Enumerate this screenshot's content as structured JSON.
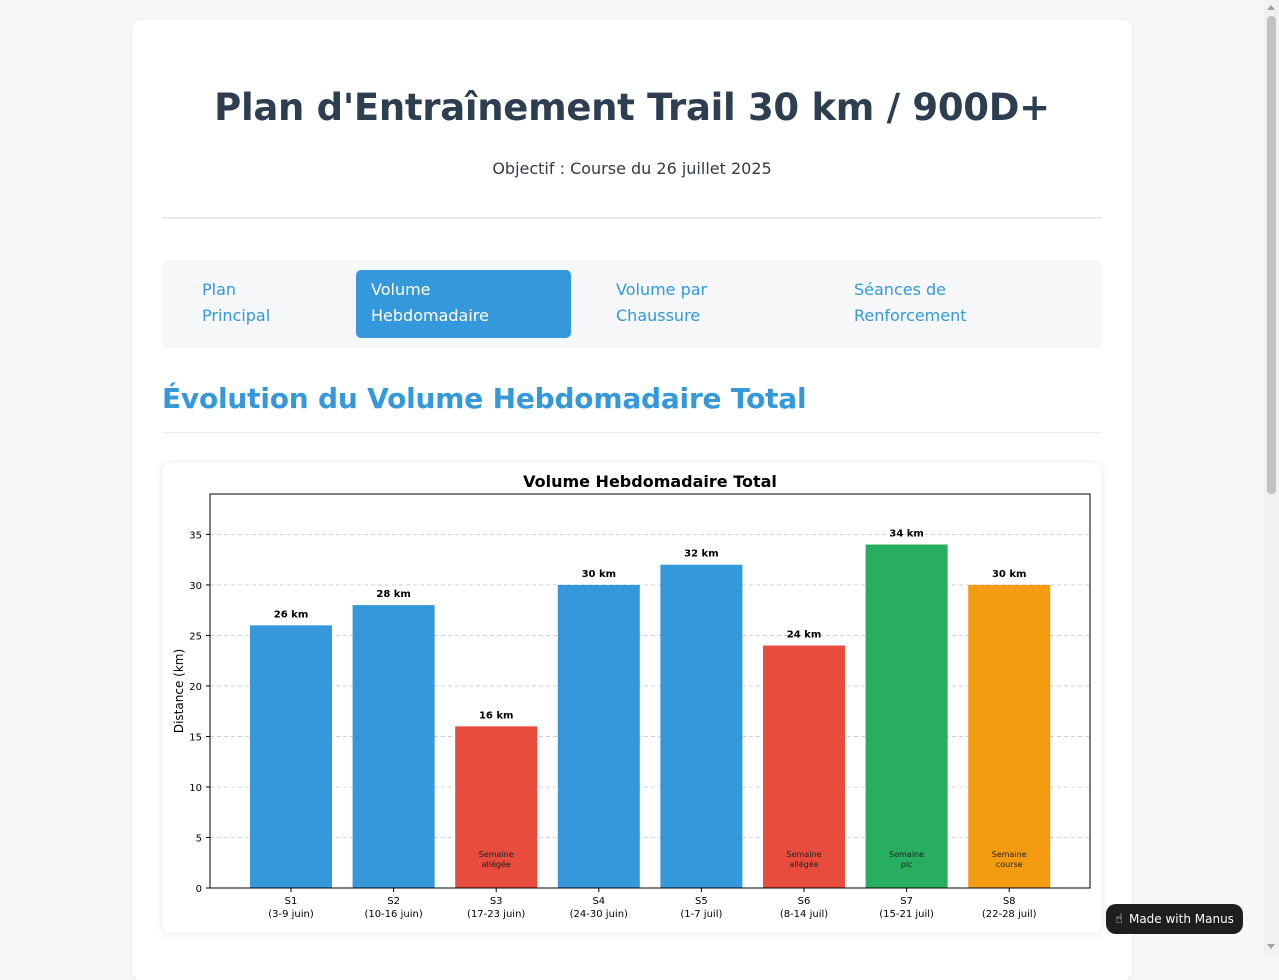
{
  "header": {
    "title": "Plan d'Entraînement Trail 30 km / 900D+",
    "subtitle": "Objectif : Course du 26 juillet 2025"
  },
  "tabs": [
    {
      "line1": "Plan",
      "line2": "Principal",
      "active": false
    },
    {
      "line1": "Volume",
      "line2": "Hebdomadaire",
      "active": true
    },
    {
      "line1": "Volume par",
      "line2": "Chaussure",
      "active": false
    },
    {
      "line1": "Séances de",
      "line2": "Renforcement",
      "active": false
    }
  ],
  "section": {
    "title": "Évolution du Volume Hebdomadaire Total"
  },
  "chart_data": {
    "type": "bar",
    "title": "Volume Hebdomadaire Total",
    "xlabel": "",
    "ylabel": "Distance (km)",
    "ylim": [
      0,
      39
    ],
    "yticks": [
      0,
      5,
      10,
      15,
      20,
      25,
      30,
      35
    ],
    "grid": "y-dashed",
    "categories": [
      {
        "week": "S1",
        "dates": "(3-9 juin)"
      },
      {
        "week": "S2",
        "dates": "(10-16 juin)"
      },
      {
        "week": "S3",
        "dates": "(17-23 juin)"
      },
      {
        "week": "S4",
        "dates": "(24-30 juin)"
      },
      {
        "week": "S5",
        "dates": "(1-7 juil)"
      },
      {
        "week": "S6",
        "dates": "(8-14 juil)"
      },
      {
        "week": "S7",
        "dates": "(15-21 juil)"
      },
      {
        "week": "S8",
        "dates": "(22-28 juil)"
      }
    ],
    "values": [
      26,
      28,
      16,
      30,
      32,
      24,
      34,
      30
    ],
    "value_labels": [
      "26 km",
      "28 km",
      "16 km",
      "30 km",
      "32 km",
      "24 km",
      "34 km",
      "30 km"
    ],
    "colors": [
      "#3498db",
      "#3498db",
      "#e74c3c",
      "#3498db",
      "#3498db",
      "#e74c3c",
      "#27ae60",
      "#f39c12"
    ],
    "annotations": [
      null,
      null,
      [
        "Semaine",
        "allégée"
      ],
      null,
      null,
      [
        "Semaine",
        "allégée"
      ],
      [
        "Semaine",
        "pic"
      ],
      [
        "Semaine",
        "course"
      ]
    ]
  },
  "badge": {
    "label": "Made with Manus",
    "icon": "manus-hand-icon"
  }
}
